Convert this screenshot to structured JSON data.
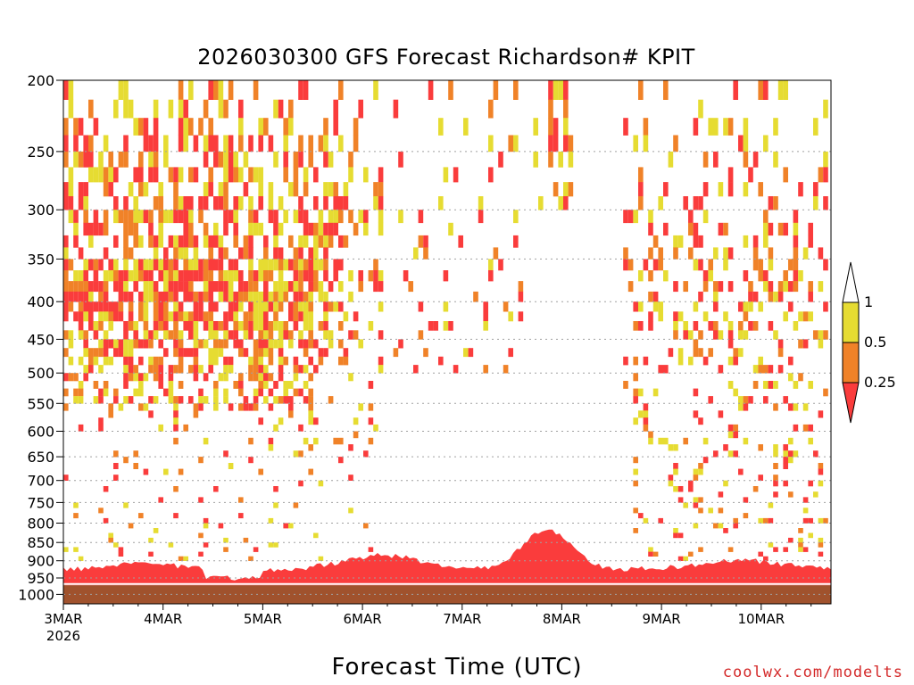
{
  "chart_data": {
    "type": "heatmap",
    "title": "2026030300 GFS Forecast Richardson# KPIT",
    "xlabel": "Forecast Time (UTC)",
    "x_tick_labels": [
      "3MAR",
      "4MAR",
      "5MAR",
      "6MAR",
      "7MAR",
      "8MAR",
      "9MAR",
      "10MAR"
    ],
    "x_tick_year": "2026",
    "x_range_days": [
      0,
      7.7
    ],
    "y_tick_labels": [
      "200",
      "250",
      "300",
      "350",
      "400",
      "450",
      "500",
      "550",
      "600",
      "650",
      "700",
      "750",
      "800",
      "850",
      "900",
      "950",
      "1000"
    ],
    "y_ticks": [
      200,
      250,
      300,
      350,
      400,
      450,
      500,
      550,
      600,
      650,
      700,
      750,
      800,
      850,
      900,
      950,
      1000
    ],
    "y_range_hpa": [
      200,
      1030
    ],
    "y_scale": "log-pressure (inverted)",
    "grid": "dotted horizontal lines at pressure levels",
    "colorbar": {
      "placement": "right",
      "labels": [
        "1",
        "0.5",
        "0.25"
      ],
      "bins": [
        {
          "range": "> 1",
          "color": "#ffffff"
        },
        {
          "range": "0.5 - 1",
          "color": "#e6dc32"
        },
        {
          "range": "0.25 - 0.5",
          "color": "#f08228"
        },
        {
          "range": "< 0.25",
          "color": "#fa3c3c"
        }
      ]
    },
    "ground_color": "#a0522d",
    "surface_pressure_hpa": 972
  },
  "credit": "coolwx.com/modelts"
}
